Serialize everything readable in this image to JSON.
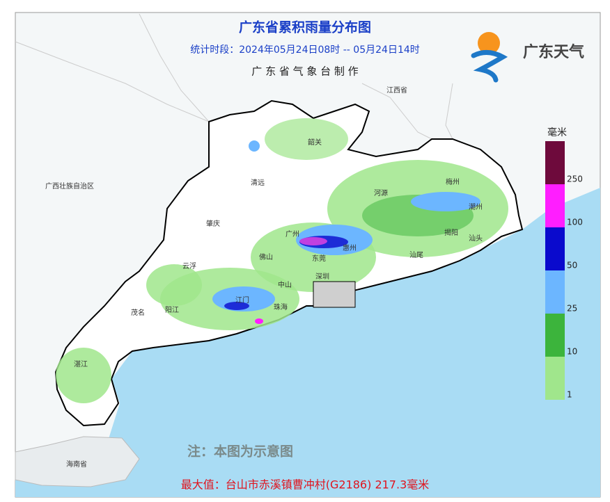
{
  "header": {
    "title": "广东省累积雨量分布图",
    "period": "统计时段：2024年05月24日08时  --  05月24日14时",
    "producer": "广 东 省 气 象 台 制 作"
  },
  "logo": {
    "text": "广东天气"
  },
  "legend": {
    "unit": "毫米",
    "items": [
      {
        "label": "250",
        "color": "#6e0a3c"
      },
      {
        "label": "100",
        "color": "#ff1eff"
      },
      {
        "label": "50",
        "color": "#0a0acd"
      },
      {
        "label": "25",
        "color": "#6cb6ff"
      },
      {
        "label": "10",
        "color": "#3cb43c"
      },
      {
        "label": "1",
        "color": "#a0e68c"
      }
    ]
  },
  "places": [
    "广西壮族自治区",
    "江西省",
    "韶关",
    "清远",
    "河源",
    "梅州",
    "潮州",
    "揭阳",
    "汕头",
    "汕尾",
    "惠州",
    "广州",
    "东莞",
    "深圳",
    "佛山",
    "中山",
    "江门",
    "珠海",
    "肇庆",
    "云浮",
    "阳江",
    "茂名",
    "湛江",
    "海南省"
  ],
  "note": "注：本图为示意图",
  "footer": {
    "max": "最大值：台山市赤溪镇曹冲村(G2186) 217.3毫米"
  }
}
